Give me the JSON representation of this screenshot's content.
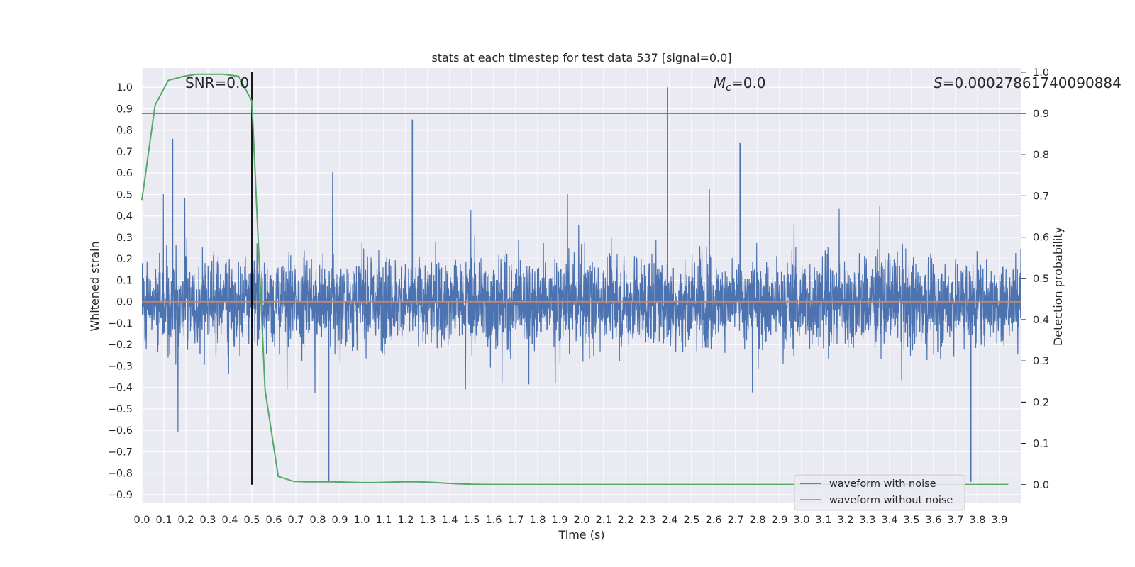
{
  "chart_data": {
    "type": "line",
    "title": "stats at each timestep for test data 537 [signal=0.0]",
    "xlabel": "Time (s)",
    "ylabel": "Whitened strain",
    "y2label": "Detection probability",
    "xlim": [
      0.0,
      4.0
    ],
    "ylim": [
      -0.94,
      1.09
    ],
    "y2lim": [
      -0.045,
      1.01
    ],
    "x_ticks": [
      "0.0",
      "0.1",
      "0.2",
      "0.3",
      "0.4",
      "0.5",
      "0.6",
      "0.7",
      "0.8",
      "0.9",
      "1.0",
      "1.1",
      "1.2",
      "1.3",
      "1.4",
      "1.5",
      "1.6",
      "1.7",
      "1.8",
      "1.9",
      "2.0",
      "2.1",
      "2.2",
      "2.3",
      "2.4",
      "2.5",
      "2.6",
      "2.7",
      "2.8",
      "2.9",
      "3.0",
      "3.1",
      "3.2",
      "3.3",
      "3.4",
      "3.5",
      "3.6",
      "3.7",
      "3.8",
      "3.9"
    ],
    "y_ticks": [
      "1.0",
      "0.9",
      "0.8",
      "0.7",
      "0.6",
      "0.5",
      "0.4",
      "0.3",
      "0.2",
      "0.1",
      "0.0",
      "-0.1",
      "-0.2",
      "-0.3",
      "-0.4",
      "-0.5",
      "-0.6",
      "-0.7",
      "-0.8",
      "-0.9"
    ],
    "y2_ticks": [
      "1.0",
      "0.9",
      "0.8",
      "0.7",
      "0.6",
      "0.5",
      "0.4",
      "0.3",
      "0.2",
      "0.1",
      "0.0"
    ],
    "grid": true,
    "annotations": {
      "snr": "SNR=0.0",
      "mc_symbol": "M",
      "mc_sub": "c",
      "mc_value": "=0.0",
      "s_symbol": "S",
      "s_value": "=0.00027861740090884"
    },
    "series": [
      {
        "name": "waveform with noise",
        "color": "#4c72b0",
        "axis": "left",
        "description_range": [
          -0.84,
          1.0
        ],
        "peaks": [
          {
            "x": 2.39,
            "y": 1.0
          },
          {
            "x": 1.23,
            "y": 0.85
          },
          {
            "x": 0.85,
            "y": -0.84
          },
          {
            "x": 3.77,
            "y": -0.84
          },
          {
            "x": 0.14,
            "y": 0.76
          },
          {
            "x": 2.72,
            "y": 0.74
          }
        ]
      },
      {
        "name": "waveform without noise",
        "color": "#dd8452",
        "axis": "left",
        "x": [
          0.0,
          4.0
        ],
        "values": [
          0.0,
          0.0
        ]
      },
      {
        "name": "detection probability",
        "color": "#55a868",
        "axis": "right",
        "x": [
          0.0,
          0.06,
          0.12,
          0.19,
          0.25,
          0.31,
          0.37,
          0.44,
          0.5,
          0.56,
          0.62,
          0.69,
          0.75,
          0.81,
          0.87,
          0.94,
          1.0,
          1.06,
          1.12,
          1.19,
          1.25,
          1.31,
          1.37,
          1.44,
          1.5,
          1.56,
          1.62,
          1.69,
          1.75,
          2.0,
          2.5,
          3.0,
          3.5,
          3.94
        ],
        "values": [
          0.69,
          0.92,
          0.98,
          0.99,
          0.995,
          0.995,
          0.995,
          0.99,
          0.93,
          0.23,
          0.02,
          0.008,
          0.007,
          0.007,
          0.007,
          0.006,
          0.005,
          0.005,
          0.006,
          0.007,
          0.007,
          0.006,
          0.004,
          0.002,
          0.001,
          0.0005,
          0.0003,
          0.0003,
          0.0003,
          0.0003,
          0.0003,
          0.0003,
          0.0003,
          0.0003
        ]
      }
    ],
    "reference_lines": [
      {
        "name": "threshold",
        "axis": "right",
        "y": 0.9,
        "color": "#c44e52"
      },
      {
        "name": "event-time",
        "x": 0.5,
        "color": "#000000",
        "from": 0.0,
        "to": 1.0
      }
    ],
    "legend": {
      "position": "lower-right",
      "entries": [
        {
          "label": "waveform with noise",
          "color": "#4c72b0"
        },
        {
          "label": "waveform without noise",
          "color": "#dd8452"
        }
      ]
    }
  }
}
